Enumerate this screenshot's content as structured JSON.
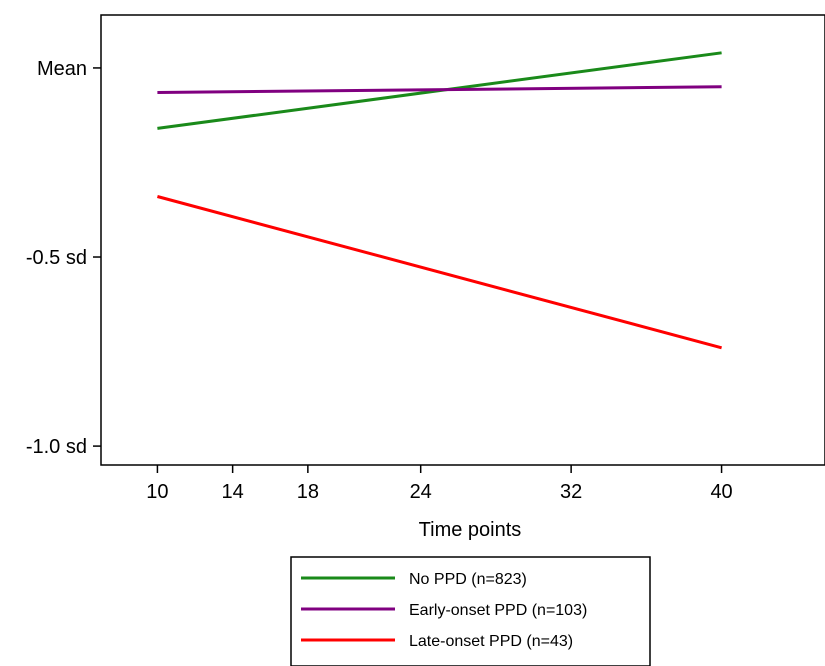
{
  "chart_data": {
    "type": "line",
    "xlabel": "Time points",
    "ylabel": "",
    "x_ticks": [
      10,
      14,
      18,
      24,
      32,
      40
    ],
    "x_tick_labels": [
      "10",
      "14",
      "18",
      "24",
      "32",
      "40"
    ],
    "xlim": [
      7,
      45.5
    ],
    "y_ticks": [
      0,
      -0.5,
      -1.0
    ],
    "y_tick_labels": [
      "Mean",
      "-0.5 sd",
      "-1.0 sd"
    ],
    "ylim": [
      -1.05,
      0.14
    ],
    "grid": false,
    "legend_position": "bottom",
    "series": [
      {
        "name": "No PPD (n=823)",
        "color": "#1a8a1a",
        "x": [
          10,
          40
        ],
        "y": [
          -0.16,
          0.04
        ]
      },
      {
        "name": "Early-onset PPD (n=103)",
        "color": "#800080",
        "x": [
          10,
          40
        ],
        "y": [
          -0.065,
          -0.05
        ]
      },
      {
        "name": "Late-onset PPD (n=43)",
        "color": "#ff0000",
        "x": [
          10,
          40
        ],
        "y": [
          -0.34,
          -0.74
        ]
      }
    ]
  }
}
